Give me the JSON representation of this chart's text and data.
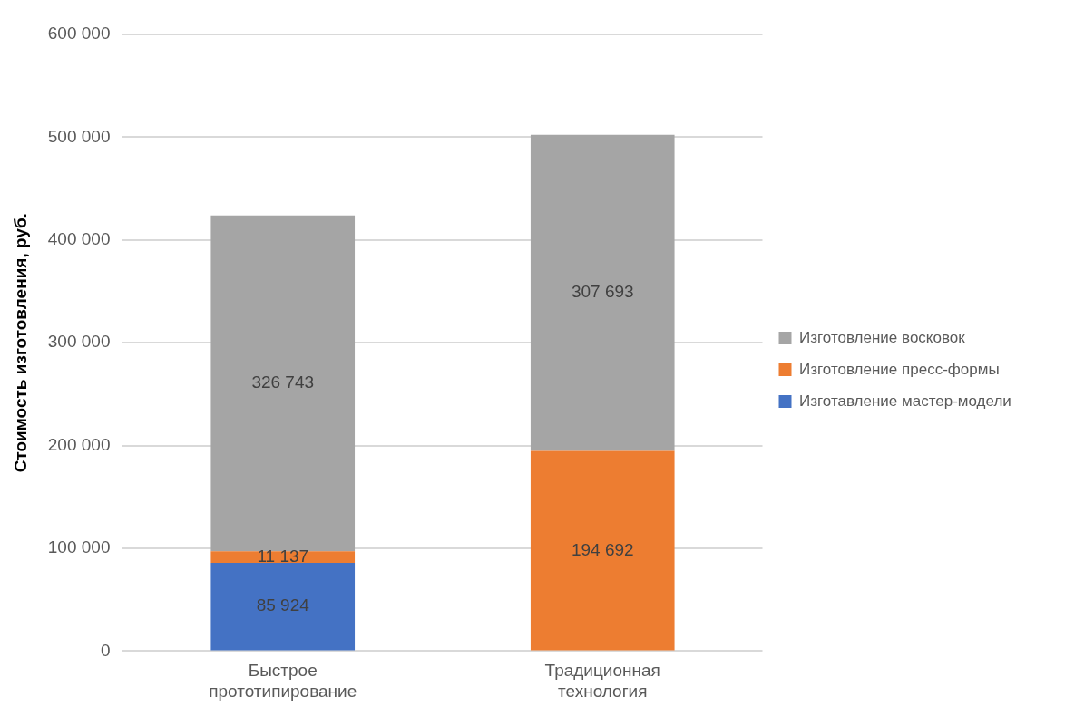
{
  "chart_data": {
    "type": "bar",
    "stacked": true,
    "ylabel": "Стоимость изготовления, руб.",
    "categories": [
      "Быстрое прототипирование",
      "Традиционная технология"
    ],
    "series": [
      {
        "name": "Изготавление мастер-модели",
        "color": "#4472c4",
        "values": [
          85924,
          null
        ],
        "value_labels": [
          "85 924",
          null
        ]
      },
      {
        "name": "Изготовление пресс-формы",
        "color": "#ed7d31",
        "values": [
          11137,
          194692
        ],
        "value_labels": [
          "11 137",
          "194 692"
        ]
      },
      {
        "name": "Изготовление восковок",
        "color": "#a5a5a5",
        "values": [
          326743,
          307693
        ],
        "value_labels": [
          "326 743",
          "307 693"
        ]
      }
    ],
    "ylim": [
      0,
      600000
    ],
    "yticks": [
      {
        "value": 0,
        "label": "0"
      },
      {
        "value": 100000,
        "label": "100 000"
      },
      {
        "value": 200000,
        "label": "200 000"
      },
      {
        "value": 300000,
        "label": "300 000"
      },
      {
        "value": 400000,
        "label": "400 000"
      },
      {
        "value": 500000,
        "label": "500 000"
      },
      {
        "value": 600000,
        "label": "600 000"
      }
    ],
    "grid": "y",
    "legend": "right"
  }
}
